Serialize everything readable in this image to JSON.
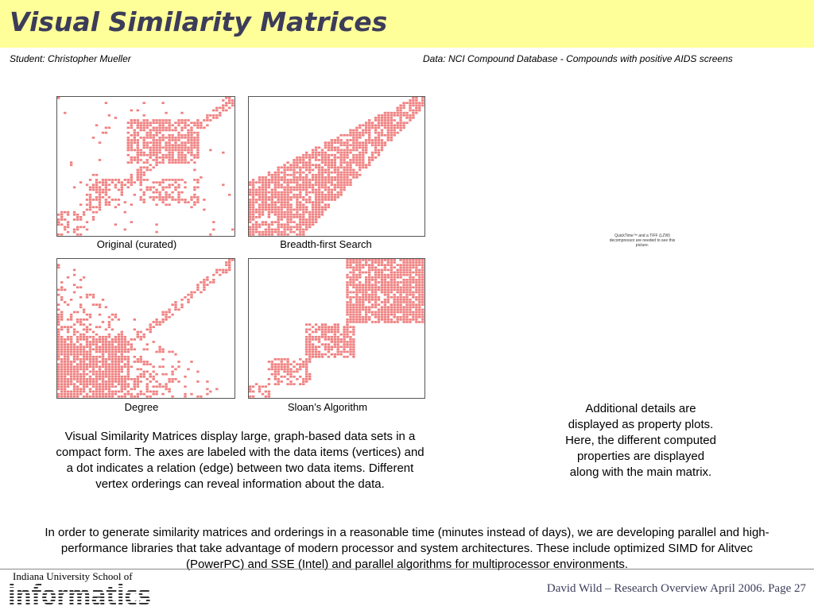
{
  "title": "Visual Similarity Matrices",
  "student": "Student: Christopher Mueller",
  "data_source": "Data: NCI Compound Database - Compounds with positive AIDS screens",
  "matrices": [
    {
      "caption": "Original (curated)"
    },
    {
      "caption": "Breadth-first Search"
    },
    {
      "caption": "Degree"
    },
    {
      "caption": "Sloan’s Algorithm"
    }
  ],
  "quicktime_note": "QuickTime™ and a TIFF (LZW) decompressor are needed to see this picture.",
  "side_text": "Additional details are displayed as property plots.  Here, the different computed properties are displayed along with the main matrix.",
  "description": "Visual Similarity Matrices display large, graph-based data sets in a compact form.  The axes are labeled with the data items (vertices) and a dot indicates a relation (edge) between two data items.  Different vertex orderings can reveal information about the data.",
  "bottom_text": "In order to generate similarity matrices and orderings in a reasonable time (minutes instead of days), we are developing parallel and high-performance libraries that take advantage of modern processor and system architectures.  These include optimized SIMD for Alitvec (PowerPC) and SSE (Intel) and parallel algorithms for multiprocessor environments.",
  "school": "Indiana University School of",
  "logo_text": "informatics",
  "footer": "David Wild – Research Overview April 2006.  Page 27",
  "colors": {
    "title_bg": "#ffff99",
    "title_text": "#3c3c5a",
    "matrix_dot": "#f08080"
  }
}
